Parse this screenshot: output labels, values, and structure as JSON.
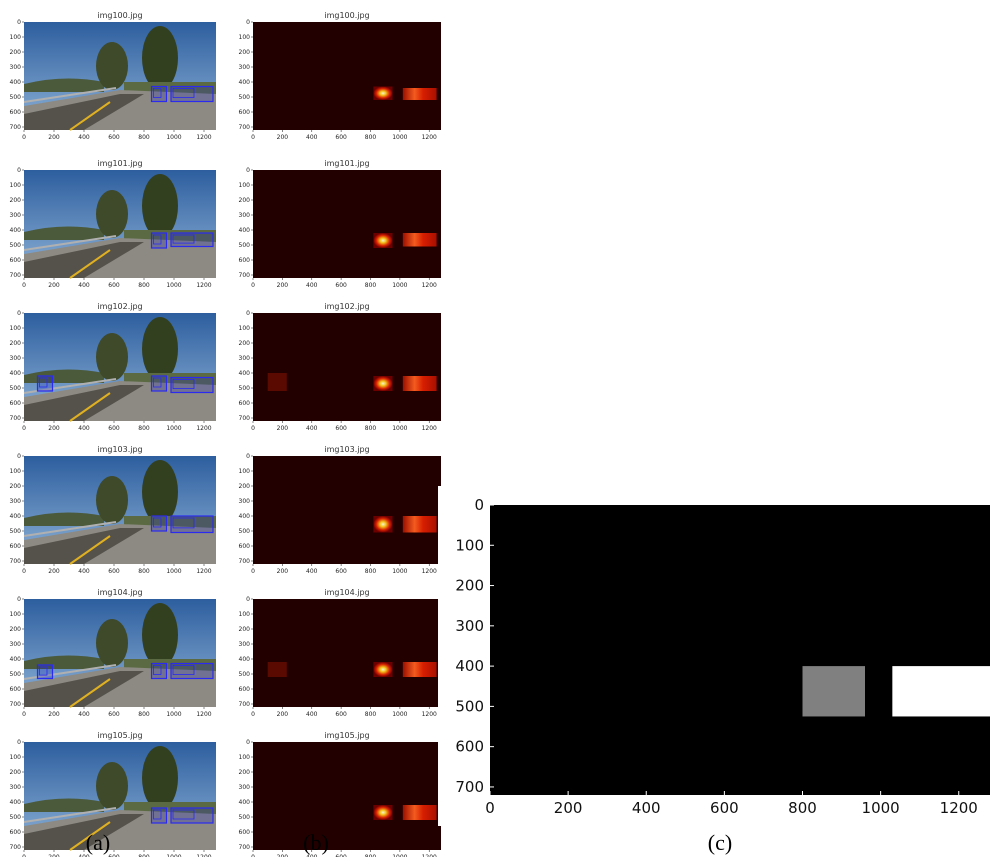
{
  "panels": [
    {
      "title": "img100.jpg",
      "left_boxes": [
        [
          850,
          430,
          950,
          530
        ],
        [
          980,
          430,
          1260,
          530
        ]
      ],
      "heat": [
        [
          820,
          430,
          950,
          520,
          1.0,
          "spot"
        ],
        [
          1020,
          440,
          1250,
          520,
          0.85,
          "band"
        ]
      ]
    },
    {
      "title": "img101.jpg",
      "left_boxes": [
        [
          850,
          420,
          950,
          520
        ],
        [
          980,
          420,
          1260,
          510
        ]
      ],
      "heat": [
        [
          820,
          420,
          950,
          520,
          1.0,
          "spot"
        ],
        [
          1020,
          420,
          1250,
          510,
          0.8,
          "band"
        ]
      ]
    },
    {
      "title": "img102.jpg",
      "left_boxes": [
        [
          90,
          420,
          190,
          520
        ],
        [
          850,
          420,
          950,
          520
        ],
        [
          980,
          430,
          1260,
          530
        ]
      ],
      "heat": [
        [
          100,
          400,
          230,
          520,
          0.3,
          "flat"
        ],
        [
          820,
          420,
          950,
          520,
          1.0,
          "spot"
        ],
        [
          1020,
          420,
          1250,
          520,
          0.85,
          "band"
        ]
      ]
    },
    {
      "title": "img103.jpg",
      "left_boxes": [
        [
          850,
          400,
          950,
          500
        ],
        [
          980,
          400,
          1260,
          510
        ]
      ],
      "heat": [
        [
          820,
          400,
          950,
          510,
          1.0,
          "spot"
        ],
        [
          1020,
          400,
          1250,
          510,
          0.8,
          "band"
        ]
      ]
    },
    {
      "title": "img104.jpg",
      "left_boxes": [
        [
          90,
          440,
          190,
          530
        ],
        [
          850,
          430,
          950,
          530
        ],
        [
          980,
          430,
          1260,
          530
        ]
      ],
      "heat": [
        [
          100,
          420,
          230,
          520,
          0.3,
          "flat"
        ],
        [
          820,
          420,
          950,
          520,
          1.0,
          "spot"
        ],
        [
          1020,
          420,
          1250,
          520,
          0.9,
          "band"
        ]
      ]
    },
    {
      "title": "img105.jpg",
      "left_boxes": [
        [
          850,
          440,
          950,
          540
        ],
        [
          980,
          440,
          1260,
          540
        ]
      ],
      "heat": [
        [
          820,
          420,
          950,
          520,
          1.0,
          "spot"
        ],
        [
          1020,
          420,
          1250,
          520,
          0.75,
          "band"
        ]
      ]
    }
  ],
  "small_x_ticks": [
    0,
    200,
    400,
    600,
    800,
    1000,
    1200
  ],
  "small_y_ticks": [
    0,
    100,
    200,
    300,
    400,
    500,
    600,
    700
  ],
  "captions": {
    "a": "(a)",
    "b": "(b)",
    "c": "(c)"
  },
  "chart_data": [
    {
      "type": "heatmap",
      "title": "",
      "description_panels": [
        "img100.jpg",
        "img101.jpg",
        "img102.jpg",
        "img103.jpg",
        "img104.jpg",
        "img105.jpg"
      ],
      "xlim": [
        0,
        1280
      ],
      "ylim": [
        720,
        0
      ]
    },
    {
      "type": "heatmap",
      "title": "",
      "xlim": [
        0,
        1280
      ],
      "ylim": [
        720,
        0
      ],
      "x_ticks": [
        0,
        200,
        400,
        600,
        800,
        1000,
        1200
      ],
      "y_ticks": [
        0,
        100,
        200,
        300,
        400,
        500,
        600,
        700
      ],
      "regions": [
        {
          "x0": 800,
          "x1": 960,
          "y0": 400,
          "y1": 525,
          "value": 0.5,
          "color": "#808080"
        },
        {
          "x0": 1030,
          "x1": 1280,
          "y0": 400,
          "y1": 525,
          "value": 1.0,
          "color": "#ffffff"
        }
      ],
      "background": "#000000"
    }
  ],
  "colors": {
    "sky": "#3f6fb0",
    "road": "#8c8a83",
    "box": "#2a2af0",
    "heat_bg": "#220000"
  }
}
